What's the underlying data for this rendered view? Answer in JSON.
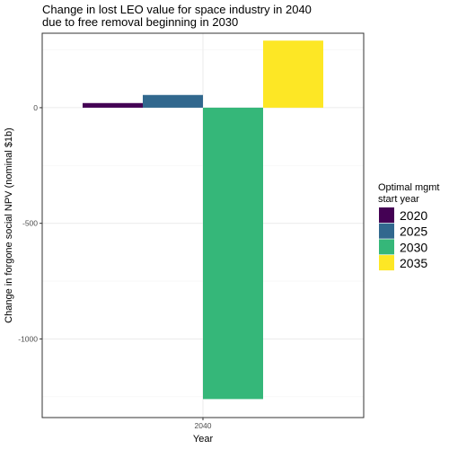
{
  "chart_data": {
    "type": "bar",
    "title_lines": [
      "Change in lost LEO value for space industry in 2040",
      "due to free removal beginning in 2030"
    ],
    "xlabel": "Year",
    "ylabel": "Change in forgone social NPV (nominal $1b)",
    "categories": [
      "2040"
    ],
    "ylim": [
      -1330,
      290
    ],
    "yticks": [
      0,
      -500,
      -1000
    ],
    "ytick_labels": [
      "0",
      "-500",
      "-1000"
    ],
    "grid": true,
    "legend": {
      "title_lines": [
        "Optimal mgmt",
        "start year"
      ],
      "placement": "right"
    },
    "series": [
      {
        "name": "2020",
        "color": "#440154",
        "values": [
          20
        ]
      },
      {
        "name": "2025",
        "color": "#31688E",
        "values": [
          55
        ]
      },
      {
        "name": "2030",
        "color": "#35B779",
        "values": [
          -1260
        ]
      },
      {
        "name": "2035",
        "color": "#FDE725",
        "values": [
          290
        ]
      }
    ]
  }
}
